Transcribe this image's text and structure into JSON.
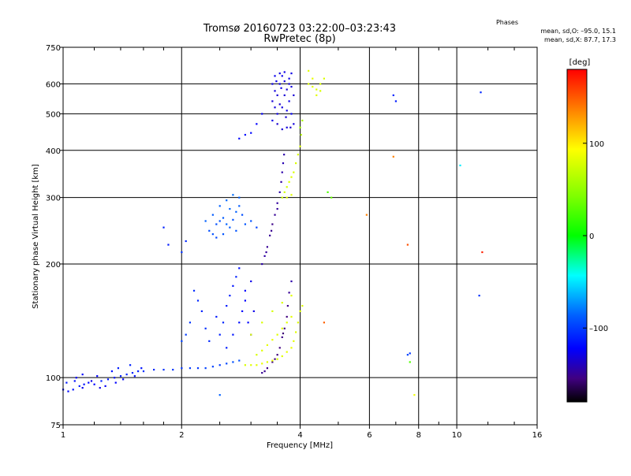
{
  "header": {
    "title_line1": "Tromsø 20160723 03:22:00–03:23:43",
    "title_line2": "RwPretec (8p)"
  },
  "phase_box": {
    "heading": "Phases",
    "line_o": "mean, sd,O: –95.0, 15.1",
    "line_x": "mean, sd,X: 87.7, 17.3"
  },
  "colorbar": {
    "unit": "[deg]",
    "tick_values": [
      100,
      0,
      -100
    ],
    "tick_labels": [
      "100",
      "0",
      "–100"
    ],
    "range": [
      -180,
      180
    ]
  },
  "chart_data": {
    "type": "scatter",
    "xlabel": "Frequency [MHz]",
    "ylabel": "Stationary phase Virtual Height [km]",
    "xscale": "log",
    "yscale": "log",
    "xlim": [
      1,
      16
    ],
    "ylim": [
      75,
      750
    ],
    "x_ticks": [
      1,
      2,
      4,
      6,
      8,
      10,
      16
    ],
    "x_tick_labels": [
      "1",
      "2",
      "4",
      "6",
      "8",
      "10",
      "16"
    ],
    "x_minor_ticks": [
      1.2,
      1.4,
      1.6,
      1.8,
      2.5,
      3,
      3.5,
      5,
      7,
      9,
      12,
      14
    ],
    "y_ticks": [
      75,
      100,
      200,
      300,
      400,
      500,
      600,
      750
    ],
    "y_tick_labels": [
      "75",
      "100",
      "200",
      "300",
      "400",
      "500",
      "600",
      "750"
    ],
    "grid": true,
    "color_encoding": "phase (deg)",
    "series": [
      {
        "name": "O",
        "points": [
          [
            1.0,
            93,
            -120
          ],
          [
            1.03,
            92,
            -118
          ],
          [
            1.06,
            93,
            -115
          ],
          [
            1.1,
            95,
            -112
          ],
          [
            1.13,
            96,
            -115
          ],
          [
            1.16,
            97,
            -118
          ],
          [
            1.2,
            96,
            -120
          ],
          [
            1.25,
            98,
            -110
          ],
          [
            1.3,
            99,
            -112
          ],
          [
            1.35,
            100,
            -115
          ],
          [
            1.4,
            101,
            -110
          ],
          [
            1.45,
            102,
            -108
          ],
          [
            1.5,
            103,
            -108
          ],
          [
            1.55,
            104,
            -110
          ],
          [
            1.6,
            104,
            -106
          ],
          [
            1.7,
            105,
            -108
          ],
          [
            1.8,
            105,
            -105
          ],
          [
            1.9,
            105,
            -104
          ],
          [
            2.0,
            106,
            -104
          ],
          [
            2.1,
            106,
            -102
          ],
          [
            2.2,
            106,
            -104
          ],
          [
            2.3,
            106,
            -100
          ],
          [
            2.4,
            107,
            -100
          ],
          [
            2.5,
            108,
            -102
          ],
          [
            2.6,
            109,
            -98
          ],
          [
            2.7,
            110,
            -95
          ],
          [
            2.8,
            111,
            -95
          ],
          [
            1.02,
            97,
            -112
          ],
          [
            1.08,
            100,
            -120
          ],
          [
            1.12,
            102,
            -118
          ],
          [
            1.18,
            98,
            -125
          ],
          [
            1.22,
            101,
            -120
          ],
          [
            1.28,
            95,
            -122
          ],
          [
            1.33,
            104,
            -115
          ],
          [
            1.38,
            106,
            -112
          ],
          [
            1.42,
            99,
            -118
          ],
          [
            1.48,
            108,
            -110
          ],
          [
            1.52,
            101,
            -116
          ],
          [
            1.58,
            106,
            -114
          ],
          [
            1.12,
            94,
            -124
          ],
          [
            1.07,
            98,
            -116
          ],
          [
            1.24,
            94,
            -126
          ],
          [
            1.36,
            97,
            -120
          ],
          [
            3.2,
            103,
            -145
          ],
          [
            3.3,
            106,
            -148
          ],
          [
            3.4,
            110,
            -150
          ],
          [
            3.5,
            115,
            -152
          ],
          [
            3.55,
            120,
            -150
          ],
          [
            3.6,
            128,
            -148
          ],
          [
            3.65,
            135,
            -150
          ],
          [
            3.7,
            145,
            -150
          ],
          [
            3.72,
            155,
            -148
          ],
          [
            3.75,
            168,
            -145
          ],
          [
            3.8,
            180,
            -140
          ],
          [
            3.25,
            104,
            -146
          ],
          [
            3.45,
            112,
            -150
          ],
          [
            3.62,
            131,
            -152
          ],
          [
            3.2,
            200,
            -140
          ],
          [
            3.25,
            210,
            -142
          ],
          [
            3.3,
            222,
            -145
          ],
          [
            3.35,
            238,
            -145
          ],
          [
            3.4,
            255,
            -148
          ],
          [
            3.45,
            270,
            -145
          ],
          [
            3.5,
            290,
            -143
          ],
          [
            3.55,
            310,
            -140
          ],
          [
            3.58,
            330,
            -142
          ],
          [
            3.6,
            350,
            -140
          ],
          [
            3.62,
            370,
            -138
          ],
          [
            3.64,
            390,
            -140
          ],
          [
            3.5,
            280,
            -144
          ],
          [
            3.38,
            245,
            -146
          ],
          [
            3.28,
            215,
            -144
          ],
          [
            2.5,
            130,
            -110
          ],
          [
            2.55,
            140,
            -108
          ],
          [
            2.6,
            155,
            -112
          ],
          [
            2.65,
            165,
            -110
          ],
          [
            2.7,
            175,
            -114
          ],
          [
            2.75,
            185,
            -110
          ],
          [
            2.8,
            195,
            -116
          ],
          [
            2.85,
            150,
            -118
          ],
          [
            2.9,
            160,
            -120
          ],
          [
            2.95,
            140,
            -118
          ],
          [
            3.0,
            130,
            -122
          ],
          [
            2.45,
            145,
            -112
          ],
          [
            2.35,
            125,
            -108
          ],
          [
            2.3,
            135,
            -106
          ],
          [
            2.25,
            150,
            -110
          ],
          [
            2.2,
            160,
            -108
          ],
          [
            2.15,
            170,
            -106
          ],
          [
            2.1,
            140,
            -104
          ],
          [
            2.05,
            130,
            -102
          ],
          [
            2.0,
            125,
            -100
          ],
          [
            2.6,
            120,
            -112
          ],
          [
            2.7,
            130,
            -114
          ],
          [
            2.8,
            140,
            -116
          ],
          [
            2.9,
            170,
            -120
          ],
          [
            3.0,
            180,
            -125
          ],
          [
            3.05,
            150,
            -125
          ],
          [
            2.4,
            240,
            -95
          ],
          [
            2.45,
            255,
            -96
          ],
          [
            2.5,
            260,
            -95
          ],
          [
            2.55,
            265,
            -92
          ],
          [
            2.6,
            255,
            -90
          ],
          [
            2.65,
            250,
            -92
          ],
          [
            2.7,
            262,
            -94
          ],
          [
            2.75,
            275,
            -90
          ],
          [
            2.8,
            285,
            -92
          ],
          [
            2.85,
            270,
            -96
          ],
          [
            2.9,
            255,
            -94
          ],
          [
            3.0,
            260,
            -95
          ],
          [
            3.1,
            250,
            -100
          ],
          [
            2.4,
            270,
            -92
          ],
          [
            2.5,
            285,
            -90
          ],
          [
            2.6,
            295,
            -88
          ],
          [
            2.7,
            305,
            -86
          ],
          [
            2.8,
            300,
            -90
          ],
          [
            2.3,
            260,
            -90
          ],
          [
            2.35,
            245,
            -96
          ],
          [
            2.45,
            235,
            -98
          ],
          [
            2.55,
            240,
            -94
          ],
          [
            2.65,
            280,
            -88
          ],
          [
            2.75,
            245,
            -94
          ],
          [
            3.4,
            480,
            -125
          ],
          [
            3.45,
            520,
            -128
          ],
          [
            3.5,
            560,
            -130
          ],
          [
            3.55,
            600,
            -126
          ],
          [
            3.6,
            630,
            -124
          ],
          [
            3.65,
            610,
            -128
          ],
          [
            3.7,
            580,
            -130
          ],
          [
            3.75,
            540,
            -126
          ],
          [
            3.8,
            500,
            -122
          ],
          [
            3.85,
            470,
            -128
          ],
          [
            3.5,
            470,
            -132
          ],
          [
            3.6,
            455,
            -130
          ],
          [
            3.7,
            460,
            -128
          ],
          [
            3.4,
            600,
            -126
          ],
          [
            3.45,
            630,
            -124
          ],
          [
            3.55,
            640,
            -128
          ],
          [
            3.65,
            645,
            -126
          ],
          [
            3.75,
            620,
            -124
          ],
          [
            3.8,
            590,
            -128
          ],
          [
            3.85,
            560,
            -130
          ],
          [
            3.5,
            500,
            -126
          ],
          [
            3.6,
            520,
            -128
          ],
          [
            3.7,
            510,
            -126
          ],
          [
            3.4,
            540,
            -130
          ],
          [
            3.45,
            575,
            -128
          ],
          [
            3.55,
            530,
            -132
          ],
          [
            3.65,
            560,
            -130
          ],
          [
            3.75,
            600,
            -128
          ],
          [
            3.8,
            640,
            -126
          ],
          [
            3.48,
            610,
            -124
          ],
          [
            3.58,
            585,
            -126
          ],
          [
            3.68,
            490,
            -130
          ],
          [
            3.78,
            460,
            -132
          ],
          [
            2.8,
            430,
            -118
          ],
          [
            2.9,
            440,
            -116
          ],
          [
            3.0,
            445,
            -118
          ],
          [
            3.1,
            470,
            -120
          ],
          [
            3.2,
            500,
            -122
          ],
          [
            6.9,
            560,
            -110
          ],
          [
            7.0,
            540,
            -112
          ],
          [
            11.5,
            570,
            -108
          ],
          [
            11.4,
            165,
            -105
          ],
          [
            7.5,
            115,
            -100
          ],
          [
            7.6,
            116,
            -104
          ],
          [
            2.5,
            90,
            -90
          ],
          [
            1.8,
            250,
            -110
          ],
          [
            1.85,
            225,
            -112
          ],
          [
            2.0,
            215,
            -105
          ],
          [
            2.05,
            230,
            -108
          ]
        ]
      },
      {
        "name": "X",
        "points": [
          [
            2.9,
            108,
            85
          ],
          [
            3.0,
            108,
            88
          ],
          [
            3.1,
            108,
            90
          ],
          [
            3.2,
            109,
            92
          ],
          [
            3.3,
            110,
            88
          ],
          [
            3.4,
            111,
            90
          ],
          [
            3.5,
            112,
            86
          ],
          [
            3.6,
            114,
            88
          ],
          [
            3.7,
            117,
            90
          ],
          [
            3.8,
            120,
            92
          ],
          [
            3.85,
            125,
            90
          ],
          [
            3.9,
            132,
            88
          ],
          [
            3.95,
            140,
            86
          ],
          [
            4.0,
            150,
            84
          ],
          [
            4.05,
            155,
            86
          ],
          [
            3.1,
            115,
            85
          ],
          [
            3.2,
            118,
            88
          ],
          [
            3.3,
            122,
            90
          ],
          [
            3.4,
            126,
            92
          ],
          [
            3.5,
            130,
            88
          ],
          [
            3.6,
            135,
            86
          ],
          [
            3.7,
            140,
            88
          ],
          [
            3.8,
            145,
            90
          ],
          [
            3.0,
            130,
            88
          ],
          [
            3.2,
            140,
            86
          ],
          [
            3.4,
            150,
            84
          ],
          [
            3.6,
            158,
            86
          ],
          [
            3.8,
            165,
            88
          ],
          [
            3.6,
            300,
            80
          ],
          [
            3.65,
            310,
            82
          ],
          [
            3.7,
            320,
            84
          ],
          [
            3.75,
            330,
            86
          ],
          [
            3.8,
            340,
            88
          ],
          [
            3.85,
            350,
            85
          ],
          [
            3.9,
            370,
            86
          ],
          [
            3.95,
            390,
            84
          ],
          [
            4.0,
            410,
            86
          ],
          [
            3.7,
            300,
            90
          ],
          [
            3.8,
            305,
            88
          ],
          [
            4.0,
            460,
            62
          ],
          [
            4.05,
            480,
            65
          ],
          [
            4.02,
            440,
            70
          ],
          [
            4.2,
            600,
            85
          ],
          [
            4.3,
            590,
            88
          ],
          [
            4.4,
            580,
            86
          ],
          [
            4.5,
            600,
            84
          ],
          [
            4.6,
            620,
            86
          ],
          [
            4.2,
            650,
            88
          ],
          [
            4.3,
            620,
            90
          ],
          [
            4.4,
            560,
            88
          ],
          [
            4.5,
            575,
            84
          ],
          [
            4.7,
            310,
            30
          ],
          [
            4.8,
            300,
            40
          ],
          [
            5.9,
            270,
            140
          ],
          [
            7.6,
            110,
            30
          ],
          [
            7.8,
            90,
            95
          ]
        ]
      },
      {
        "name": "",
        "points": [
          [
            6.9,
            385,
            140
          ],
          [
            4.6,
            140,
            150
          ],
          [
            7.5,
            225,
            155
          ],
          [
            11.6,
            215,
            170
          ],
          [
            10.2,
            365,
            -50
          ]
        ]
      }
    ]
  }
}
